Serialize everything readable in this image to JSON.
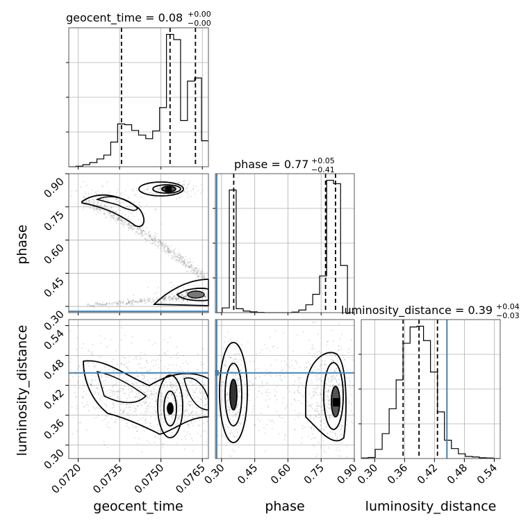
{
  "chart_data": {
    "type": "corner",
    "parameters": [
      "geocent_time",
      "phase",
      "luminosity_distance"
    ],
    "titles": [
      {
        "param": "geocent_time",
        "text": "geocent_time = 0.08",
        "plus": "+0.00",
        "minus": "−0.00"
      },
      {
        "param": "phase",
        "text": "phase = 0.77",
        "plus": "+0.05",
        "minus": "−0.41"
      },
      {
        "param": "luminosity_distance",
        "text": "luminosity_distance = 0.39",
        "plus": "+0.04",
        "minus": "−0.03"
      }
    ],
    "ranges": {
      "geocent_time": [
        0.07166,
        0.07672
      ],
      "phase": [
        0.272,
        0.9
      ],
      "luminosity_distance": [
        0.273,
        0.552
      ]
    },
    "ticks": {
      "geocent_time": [
        "0.0720",
        "0.0735",
        "0.0750",
        "0.0765"
      ],
      "phase": [
        "0.30",
        "0.45",
        "0.60",
        "0.75",
        "0.90"
      ],
      "luminosity_distance": [
        "0.30",
        "0.36",
        "0.42",
        "0.48",
        "0.54"
      ]
    },
    "truths": {
      "geocent_time": null,
      "phase": 0.278,
      "luminosity_distance": 0.445
    },
    "quantiles": {
      "geocent_time": [
        0.07357,
        0.07533,
        0.07625
      ],
      "phase": [
        0.355,
        0.77,
        0.815
      ],
      "luminosity_distance": [
        0.357,
        0.389,
        0.426
      ]
    },
    "histograms": {
      "geocent_time": {
        "edges": [
          0.07166,
          0.07192,
          0.07217,
          0.07242,
          0.07268,
          0.07293,
          0.07318,
          0.07343,
          0.07369,
          0.07394,
          0.07419,
          0.07445,
          0.0747,
          0.07495,
          0.0752,
          0.07546,
          0.07571,
          0.07596,
          0.07622,
          0.07647,
          0.07672
        ],
        "counts": [
          0,
          2,
          8,
          16,
          30,
          45,
          95,
          165,
          162,
          140,
          122,
          108,
          138,
          228,
          510,
          490,
          178,
          330,
          342,
          100
        ]
      },
      "phase": {
        "edges": [
          0.272,
          0.303,
          0.335,
          0.366,
          0.398,
          0.429,
          0.461,
          0.492,
          0.524,
          0.555,
          0.586,
          0.618,
          0.649,
          0.681,
          0.712,
          0.743,
          0.775,
          0.806,
          0.838,
          0.869,
          0.9
        ],
        "counts": [
          0,
          18,
          468,
          15,
          6,
          3,
          1,
          0,
          0,
          0,
          0,
          2,
          10,
          30,
          70,
          140,
          505,
          492,
          180,
          0
        ]
      },
      "luminosity_distance": {
        "edges": [
          0.273,
          0.287,
          0.301,
          0.315,
          0.329,
          0.343,
          0.357,
          0.371,
          0.385,
          0.398,
          0.412,
          0.426,
          0.44,
          0.454,
          0.468,
          0.482,
          0.496,
          0.51,
          0.524,
          0.538,
          0.552
        ],
        "counts": [
          2,
          4,
          35,
          95,
          190,
          300,
          440,
          502,
          505,
          450,
          330,
          178,
          70,
          38,
          18,
          8,
          6,
          3,
          2,
          0
        ]
      }
    },
    "show_grid": true
  }
}
